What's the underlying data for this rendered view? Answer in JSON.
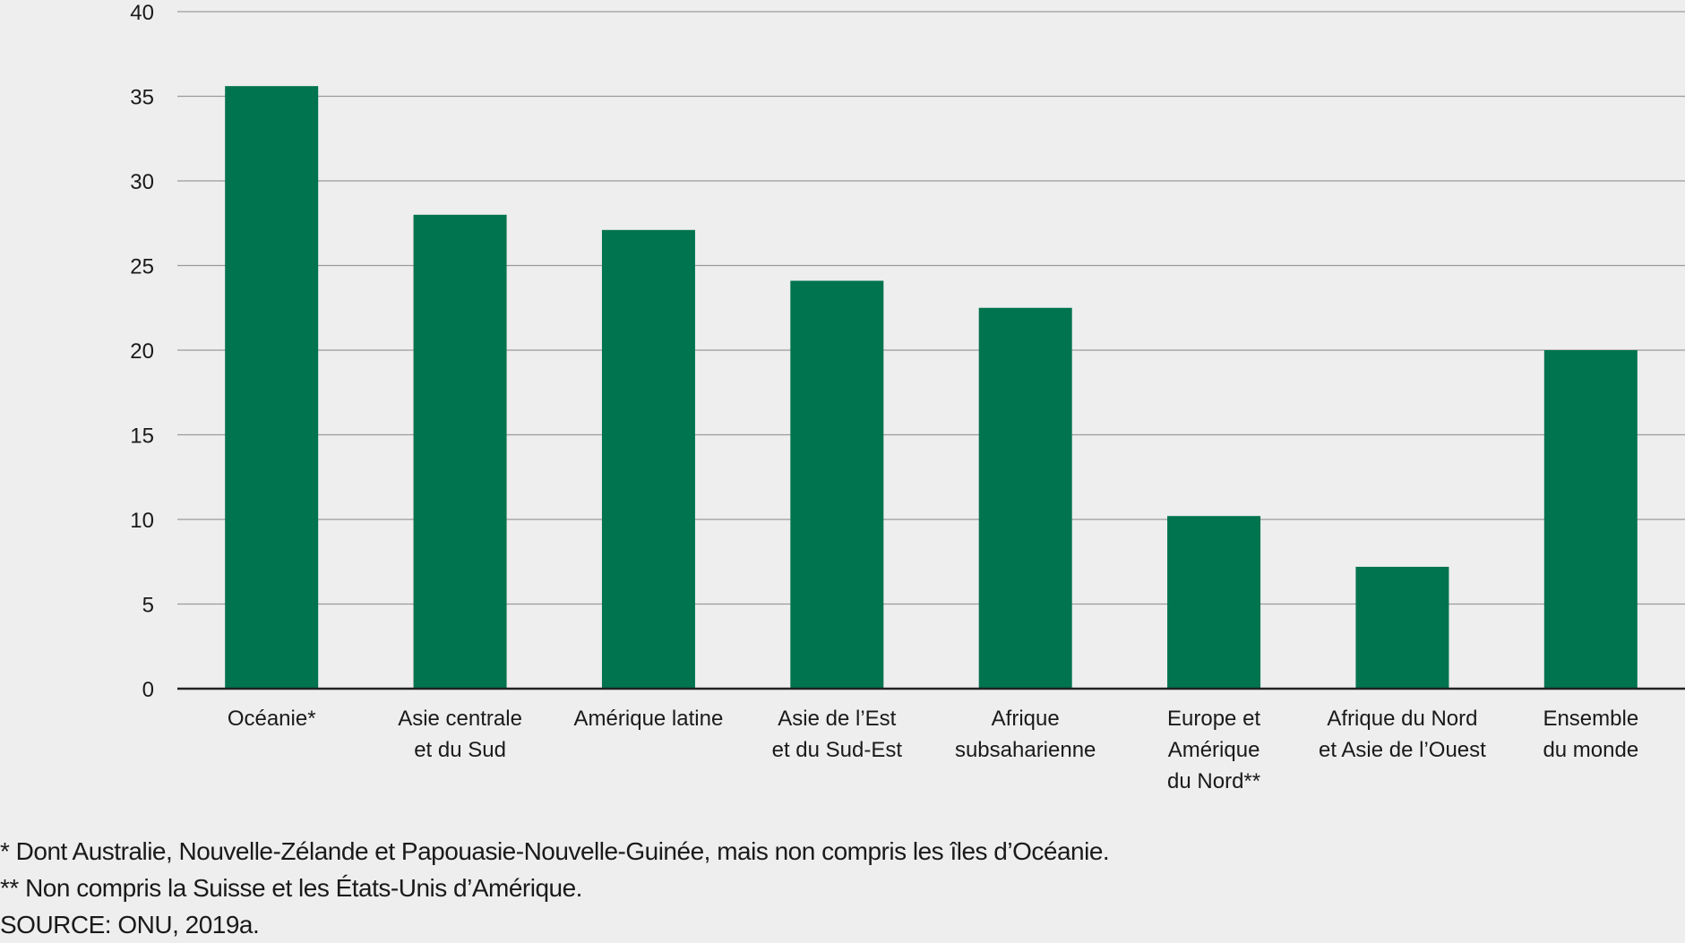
{
  "chart_data": {
    "type": "bar",
    "categories": [
      [
        "Océanie*"
      ],
      [
        "Asie centrale",
        "et du Sud"
      ],
      [
        "Amérique latine"
      ],
      [
        "Asie de l’Est",
        "et du Sud-Est"
      ],
      [
        "Afrique",
        "subsaharienne"
      ],
      [
        "Europe et",
        "Amérique",
        "du Nord**"
      ],
      [
        "Afrique du Nord",
        "et Asie de l’Ouest"
      ],
      [
        "Ensemble",
        "du monde"
      ]
    ],
    "values": [
      35.6,
      28.0,
      27.1,
      24.1,
      22.5,
      10.2,
      7.2,
      20.0
    ],
    "ylim": [
      0,
      40
    ],
    "yticks": [
      0,
      5,
      10,
      15,
      20,
      25,
      30,
      35,
      40
    ],
    "grid": true,
    "bar_color": "#00734f",
    "grid_color": "#9a9a9a",
    "axis_color": "#222222"
  },
  "footnotes": {
    "note1": "* Dont Australie, Nouvelle-Zélande et Papouasie-Nouvelle-Guinée, mais non compris les îles d’Océanie.",
    "note2": "** Non compris la Suisse et les États-Unis d’Amérique.",
    "source": "SOURCE: ONU, 2019a."
  }
}
